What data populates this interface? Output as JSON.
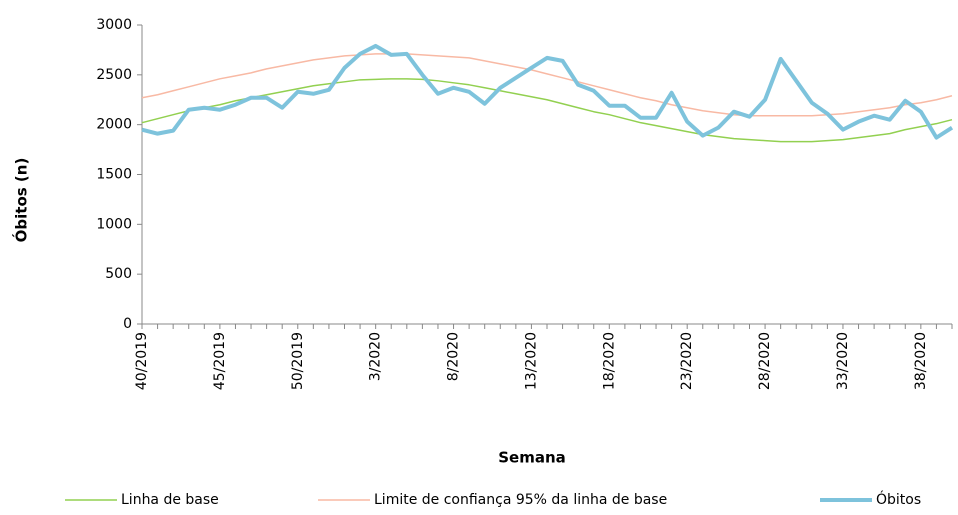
{
  "chart_data": {
    "type": "line",
    "x_label": "Semana",
    "y_label": "Óbitos (n)",
    "categories": [
      "40/2019",
      null,
      null,
      null,
      null,
      "45/2019",
      null,
      null,
      null,
      null,
      "50/2019",
      null,
      null,
      null,
      null,
      "3/2020",
      null,
      null,
      null,
      null,
      "8/2020",
      null,
      null,
      null,
      null,
      "13/2020",
      null,
      null,
      null,
      null,
      "18/2020",
      null,
      null,
      null,
      null,
      "23/2020",
      null,
      null,
      null,
      null,
      "28/2020",
      null,
      null,
      null,
      null,
      "33/2020",
      null,
      null,
      null,
      null,
      "38/2020",
      null,
      null
    ],
    "series": [
      {
        "name": "Linha de base",
        "color": "#92d050",
        "width": 1.5,
        "values": [
          2020,
          2060,
          2100,
          2140,
          2170,
          2200,
          2240,
          2270,
          2300,
          2330,
          2360,
          2390,
          2410,
          2430,
          2450,
          2455,
          2460,
          2460,
          2455,
          2440,
          2420,
          2400,
          2370,
          2340,
          2310,
          2280,
          2250,
          2210,
          2170,
          2130,
          2100,
          2060,
          2020,
          1990,
          1960,
          1930,
          1900,
          1880,
          1860,
          1850,
          1840,
          1830,
          1830,
          1830,
          1840,
          1850,
          1870,
          1890,
          1910,
          1950,
          1980,
          2010,
          2050
        ]
      },
      {
        "name": "Limite de confiança 95% da linha de base",
        "color": "#f8b9a4",
        "width": 1.5,
        "values": [
          2270,
          2300,
          2340,
          2380,
          2420,
          2460,
          2490,
          2520,
          2560,
          2590,
          2620,
          2650,
          2670,
          2690,
          2700,
          2710,
          2710,
          2710,
          2700,
          2690,
          2680,
          2670,
          2640,
          2610,
          2580,
          2550,
          2510,
          2470,
          2430,
          2390,
          2350,
          2310,
          2270,
          2240,
          2200,
          2170,
          2140,
          2120,
          2100,
          2090,
          2090,
          2090,
          2090,
          2090,
          2100,
          2110,
          2130,
          2150,
          2170,
          2200,
          2220,
          2250,
          2290
        ]
      },
      {
        "name": "Óbitos",
        "color": "#7ec3dc",
        "width": 4,
        "values": [
          1950,
          1910,
          1940,
          2150,
          2170,
          2150,
          2200,
          2270,
          2270,
          2170,
          2330,
          2310,
          2350,
          2570,
          2710,
          2790,
          2700,
          2710,
          2500,
          2310,
          2370,
          2330,
          2210,
          2370,
          2470,
          2570,
          2670,
          2640,
          2400,
          2340,
          2190,
          2190,
          2070,
          2070,
          2320,
          2030,
          1890,
          1970,
          2130,
          2080,
          2250,
          2660,
          2440,
          2220,
          2110,
          1950,
          2030,
          2090,
          2050,
          2240,
          2130,
          1870,
          1970
        ]
      }
    ],
    "ylim": [
      0,
      3000
    ],
    "yticks": [
      0,
      500,
      1000,
      1500,
      2000,
      2500,
      3000
    ],
    "grid": false,
    "legend": "bottom"
  }
}
